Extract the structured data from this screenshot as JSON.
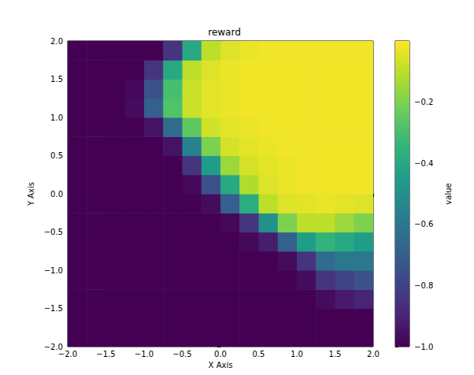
{
  "chart_data": {
    "type": "heatmap",
    "title": "reward",
    "x_label": "X Axis",
    "y_label": "Y Axis",
    "xlim": [
      -2,
      2
    ],
    "ylim": [
      -2,
      2
    ],
    "xticks": [
      {
        "value": -2,
        "label": "−2.0"
      },
      {
        "value": -1.5,
        "label": "−1.5"
      },
      {
        "value": -1,
        "label": "−1.0"
      },
      {
        "value": -0.5,
        "label": "−0.5"
      },
      {
        "value": 0,
        "label": "0.0"
      },
      0.5,
      {
        "value": 1,
        "label": "1.0"
      },
      1.5,
      {
        "value": 2,
        "label": "2.0"
      }
    ],
    "yticks": [
      {
        "value": -2,
        "label": "−2.0"
      },
      {
        "value": -1.5,
        "label": "−1.5"
      },
      {
        "value": -1,
        "label": "−1.0"
      },
      {
        "value": -0.5,
        "label": "−0.5"
      },
      {
        "value": 0,
        "label": "0.0"
      },
      0.5,
      {
        "value": 1,
        "label": "1.0"
      },
      1.5,
      {
        "value": 2,
        "label": "2.0"
      }
    ],
    "xbins": [
      -2,
      -1.75,
      -1.5,
      -1.25,
      -1,
      -0.75,
      -0.5,
      -0.25,
      0,
      0.25,
      0.5,
      0.75,
      1,
      1.25,
      1.5,
      1.75,
      2
    ],
    "ybins": [
      -2,
      -1.75,
      -1.5,
      -1.25,
      -1,
      -0.75,
      -0.5,
      -0.25,
      0,
      0.25,
      0.5,
      0.75,
      1,
      1.25,
      1.5,
      1.75,
      2
    ],
    "values": [
      [
        -1,
        -1,
        -1,
        -1,
        -1,
        -1,
        -1,
        -1,
        -1,
        -1,
        -1,
        -1,
        -1,
        -1,
        -1,
        -1
      ],
      [
        -1,
        -1,
        -1,
        -1,
        -1,
        -1,
        -1,
        -1,
        -1,
        -1,
        -1,
        -1,
        -1,
        -1,
        -1,
        -1
      ],
      [
        -1,
        -1,
        -1,
        -1,
        -1,
        -1,
        -1,
        -1,
        -1,
        -1,
        -1,
        -1,
        -1,
        -0.97,
        -0.93,
        -0.9
      ],
      [
        -1,
        -1,
        -1,
        -1,
        -1,
        -1,
        -1,
        -1,
        -1,
        -1,
        -1,
        -1,
        -0.97,
        -0.85,
        -0.8,
        -0.75
      ],
      [
        -1,
        -1,
        -1,
        -1,
        -1,
        -1,
        -1,
        -1,
        -1,
        -1,
        -1,
        -0.97,
        -0.85,
        -0.65,
        -0.6,
        -0.6
      ],
      [
        -1,
        -1,
        -1,
        -1,
        -1,
        -1,
        -1,
        -1,
        -1,
        -0.98,
        -0.92,
        -0.7,
        -0.45,
        -0.35,
        -0.4,
        -0.45
      ],
      [
        -1,
        -1,
        -1,
        -1,
        -1,
        -1,
        -1,
        -1,
        -0.98,
        -0.85,
        -0.5,
        -0.2,
        -0.1,
        -0.1,
        -0.15,
        -0.2
      ],
      [
        -1,
        -1,
        -1,
        -1,
        -1,
        -1,
        -1,
        -0.97,
        -0.7,
        -0.38,
        -0.1,
        -0.05,
        -0.04,
        -0.03,
        -0.04,
        -0.05
      ],
      [
        -1,
        -1,
        -1,
        -1,
        -1,
        -1,
        -0.98,
        -0.75,
        -0.4,
        -0.12,
        -0.05,
        -0.03,
        -0.02,
        -0.02,
        -0.02,
        -0.02
      ],
      [
        -1,
        -1,
        -1,
        -1,
        -1,
        -1,
        -0.85,
        -0.45,
        -0.15,
        -0.06,
        -0.04,
        -0.03,
        -0.02,
        -0.02,
        -0.02,
        -0.02
      ],
      [
        -1,
        -1,
        -1,
        -1,
        -1,
        -0.95,
        -0.55,
        -0.2,
        -0.06,
        -0.04,
        -0.03,
        -0.02,
        -0.02,
        -0.02,
        -0.02,
        -0.02
      ],
      [
        -1,
        -1,
        -1,
        -1,
        -0.95,
        -0.65,
        -0.25,
        -0.07,
        -0.04,
        -0.03,
        -0.02,
        -0.02,
        -0.02,
        -0.02,
        -0.02,
        -0.02
      ],
      [
        -1,
        -1,
        -1,
        -0.97,
        -0.7,
        -0.28,
        -0.08,
        -0.04,
        -0.03,
        -0.02,
        -0.02,
        -0.02,
        -0.02,
        -0.02,
        -0.02,
        -0.02
      ],
      [
        -1,
        -1,
        -1,
        -0.98,
        -0.75,
        -0.3,
        -0.08,
        -0.04,
        -0.03,
        -0.02,
        -0.02,
        -0.02,
        -0.02,
        -0.02,
        -0.02,
        -0.02
      ],
      [
        -1,
        -1,
        -1,
        -1,
        -0.85,
        -0.4,
        -0.1,
        -0.05,
        -0.03,
        -0.02,
        -0.02,
        -0.02,
        -0.02,
        -0.02,
        -0.02,
        -0.02
      ],
      [
        -1,
        -1,
        -1,
        -1,
        -1,
        -0.85,
        -0.4,
        -0.1,
        -0.05,
        -0.03,
        -0.02,
        -0.02,
        -0.02,
        -0.02,
        -0.02,
        -0.02
      ]
    ],
    "colorbar": {
      "label": "value",
      "range": [
        -1,
        0
      ],
      "ticks": [
        {
          "value": -1,
          "label": "−1.0"
        },
        {
          "value": -0.8,
          "label": "−0.8"
        },
        {
          "value": -0.6,
          "label": "−0.6"
        },
        {
          "value": -0.4,
          "label": "−0.4"
        },
        {
          "value": -0.2,
          "label": "−0.2"
        }
      ]
    }
  }
}
